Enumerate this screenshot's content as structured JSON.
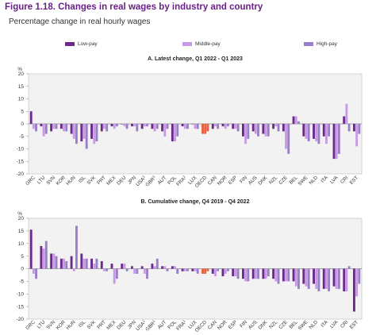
{
  "figure": {
    "title": "Figure 1.18. Changes in real wages by industry and country",
    "subtitle": "Percentage change in real hourly wages"
  },
  "legend": [
    {
      "label": "Low-pay",
      "color": "#6b2a8c"
    },
    {
      "label": "Middle-pay",
      "color": "#c89ae6"
    },
    {
      "label": "High-pay",
      "color": "#9b7ec8"
    }
  ],
  "highlight_color": "#e8603c",
  "chart_data": [
    {
      "type": "bar",
      "title": "A. Latest change, Q1 2022 - Q1 2023",
      "ylabel": "%",
      "ylim": [
        -20,
        20
      ],
      "yticks": [
        20,
        15,
        10,
        5,
        0,
        -5,
        -10,
        -15,
        -20
      ],
      "grid": false,
      "legend_position": "top",
      "highlight_category": "OECD",
      "categories": [
        "GRC",
        "LTU",
        "SVN",
        "KOR",
        "HUN",
        "ISL",
        "SVK",
        "PRT",
        "MEX",
        "DEU",
        "JPN",
        "USA1",
        "GBR1",
        "AUT",
        "POL",
        "FRA1",
        "LUX",
        "OECD",
        "CAN",
        "NOR",
        "ESP",
        "FIN",
        "AUS",
        "DNK",
        "NZL",
        "CZE",
        "BEL",
        "SWE",
        "NLD",
        "ITA",
        "LVA",
        "CRI",
        "EST"
      ],
      "series": [
        {
          "name": "Low-pay",
          "values": [
            5,
            -1,
            -3,
            -2,
            -4,
            -7,
            -6,
            -3,
            -1,
            0,
            -1,
            -2,
            -2,
            -3,
            -7,
            -1,
            0,
            -4,
            -2,
            -1,
            -2,
            -5,
            -3,
            -4,
            -2,
            -3,
            3,
            -5,
            -6,
            -5,
            -14,
            3,
            -3
          ]
        },
        {
          "name": "Middle-pay",
          "values": [
            -2,
            -5,
            -2,
            -3,
            -6,
            -6,
            -8,
            -2,
            -2,
            -1,
            -1,
            -1,
            -3,
            -5,
            -7,
            -2,
            -2,
            -4,
            -1,
            -2,
            -2,
            -8,
            -4,
            -5,
            -1,
            -10,
            3,
            -6,
            -7,
            -8,
            -14,
            8,
            -9
          ]
        },
        {
          "name": "High-pay",
          "values": [
            -3,
            -4,
            -2,
            -3,
            -8,
            -10,
            -7,
            -3,
            -1,
            -2,
            -3,
            -1,
            -2,
            -2,
            -5,
            -2,
            -2,
            -3,
            -2,
            -1,
            -3,
            -6,
            -5,
            -5,
            -3,
            -12,
            1,
            -7,
            -8,
            -5,
            -12,
            -3,
            -4
          ]
        }
      ]
    },
    {
      "type": "bar",
      "title": "B. Cumulative change, Q4 2019 - Q4 2022",
      "ylabel": "%",
      "ylim": [
        -20,
        20
      ],
      "yticks": [
        20,
        15,
        10,
        5,
        0,
        -5,
        -10,
        -15,
        -20
      ],
      "grid": false,
      "legend_position": "top",
      "highlight_category": "OECD",
      "categories": [
        "GRC",
        "LTU",
        "SVN",
        "KOR",
        "HUN",
        "ISL",
        "SVK",
        "PRT",
        "MEX",
        "DEU",
        "JPN",
        "USA1",
        "GBR1",
        "AUT",
        "POL",
        "FRA1",
        "LUX",
        "OECD",
        "CAN",
        "NOR",
        "ESP",
        "FIN",
        "AUS",
        "DNK",
        "NZL",
        "CZE",
        "BEL",
        "SWE",
        "NLD",
        "ITA",
        "LVA",
        "CRI",
        "EST"
      ],
      "series": [
        {
          "name": "Low-pay",
          "values": [
            15.5,
            9,
            6,
            4,
            5,
            6,
            4,
            3,
            2,
            2,
            1,
            1,
            2,
            1,
            1,
            -1,
            -1,
            -2,
            -2,
            -3,
            -3,
            -4,
            -4,
            -4,
            -4,
            -5,
            -5,
            -6,
            -6,
            -8,
            -7,
            -9,
            -17
          ]
        },
        {
          "name": "Middle-pay",
          "values": [
            -2,
            8,
            6,
            4,
            -1,
            4,
            2,
            -1,
            -6,
            2,
            -2,
            -2,
            1,
            1,
            1,
            -1,
            -1,
            -2,
            -3,
            -2,
            -3,
            -5,
            -4,
            -4,
            -5,
            -5,
            -7,
            -7,
            -8,
            -8,
            -8,
            -9,
            -11
          ]
        },
        {
          "name": "High-pay",
          "values": [
            -4,
            11,
            5,
            3,
            17,
            4,
            4,
            -1,
            -4,
            -1,
            -2,
            -4,
            4,
            -1,
            -2,
            -1,
            -2,
            -1,
            -1,
            -1,
            -4,
            -5,
            -4,
            -3,
            -6,
            -5,
            -8,
            -8,
            -9,
            -9,
            -8,
            1,
            -6
          ]
        }
      ]
    }
  ]
}
